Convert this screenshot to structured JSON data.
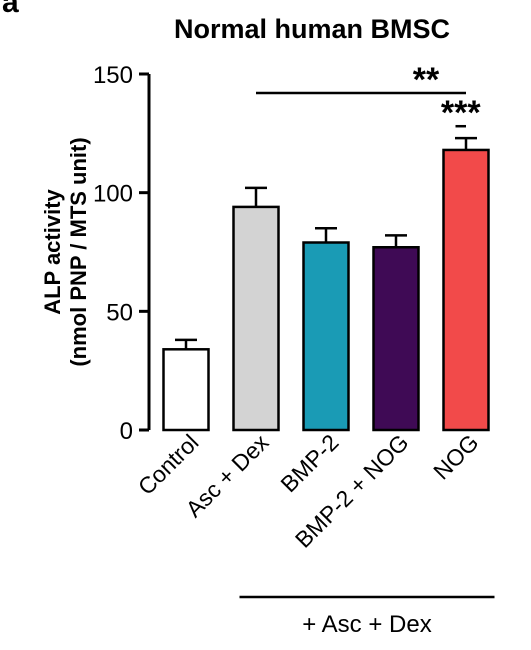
{
  "panel_label": "a",
  "chart_data": {
    "type": "bar",
    "title": "Normal human BMSC",
    "ylabel_line1": "ALP activity",
    "ylabel_line2": "(nmol PNP / MTS unit)",
    "ylim": [
      0,
      150
    ],
    "yticks": [
      0,
      50,
      100,
      150
    ],
    "categories": [
      "Control",
      "Asc + Dex",
      "BMP-2",
      "BMP-2 + NOG",
      "NOG"
    ],
    "values": [
      34,
      94,
      79,
      77,
      118
    ],
    "errors": [
      4,
      8,
      6,
      5,
      5
    ],
    "colors": [
      "#ffffff",
      "#d3d3d3",
      "#1a9bb5",
      "#3f0a55",
      "#f24a4a"
    ],
    "significance": [
      {
        "label": "**",
        "from": 1,
        "to": 4,
        "y": 142
      },
      {
        "label": "***",
        "from": 3.85,
        "to": 4,
        "y": 128
      }
    ],
    "group_bracket": {
      "label": "+ Asc + Dex",
      "from": 1,
      "to": 4
    }
  }
}
